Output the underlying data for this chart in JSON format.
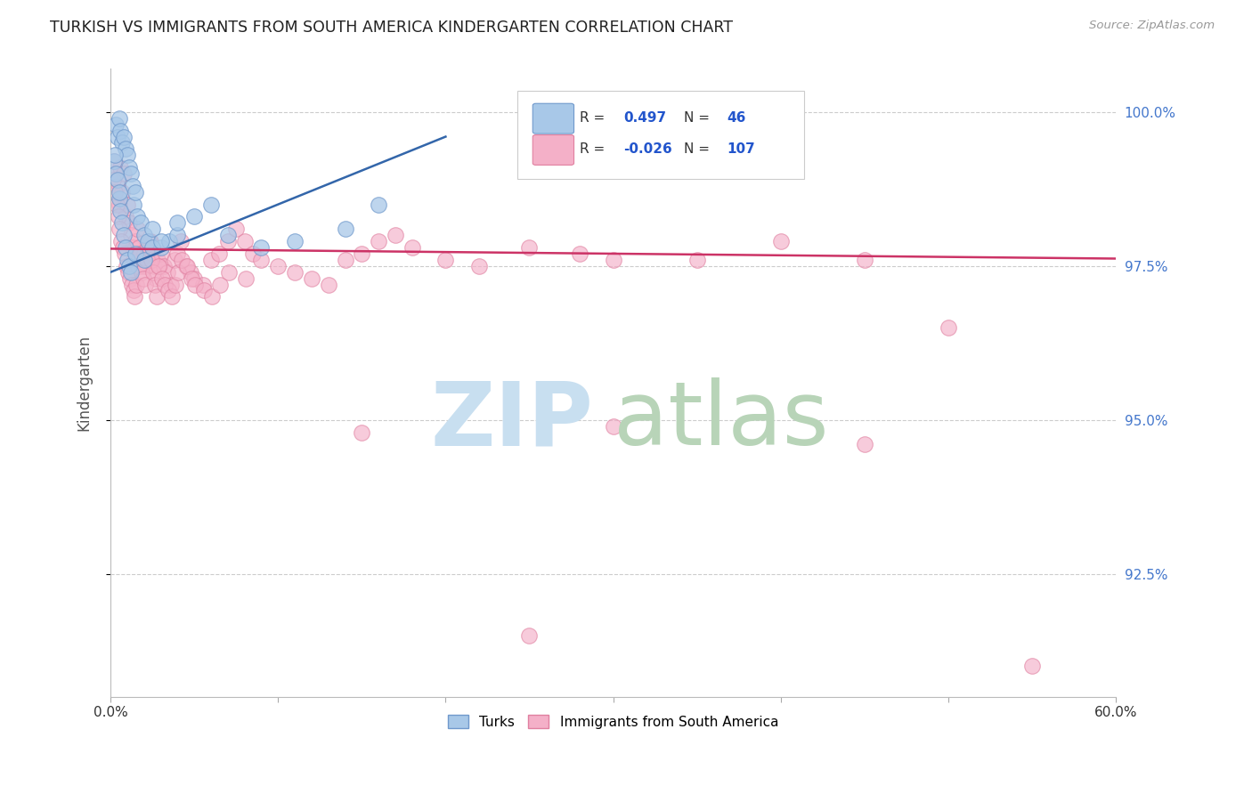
{
  "title": "TURKISH VS IMMIGRANTS FROM SOUTH AMERICA KINDERGARTEN CORRELATION CHART",
  "source": "Source: ZipAtlas.com",
  "ylabel": "Kindergarten",
  "blue_color": "#a8c8e8",
  "pink_color": "#f4b0c8",
  "blue_edge": "#7099cc",
  "pink_edge": "#e080a0",
  "blue_line_color": "#3366aa",
  "pink_line_color": "#cc3366",
  "watermark_zip_color": "#c8dff0",
  "watermark_atlas_color": "#b8d4b8",
  "xmin": 0.0,
  "xmax": 60.0,
  "ymin": 90.5,
  "ymax": 100.7,
  "yticks": [
    92.5,
    95.0,
    97.5,
    100.0
  ],
  "ytick_labels": [
    "92.5%",
    "95.0%",
    "97.5%",
    "100.0%"
  ],
  "xtick_positions": [
    0,
    10,
    20,
    30,
    40,
    50,
    60
  ],
  "xtick_labels": [
    "0.0%",
    "",
    "",
    "",
    "",
    "",
    "60.0%"
  ],
  "legend_R_blue": "0.497",
  "legend_N_blue": "46",
  "legend_R_pink": "-0.026",
  "legend_N_pink": "107",
  "blue_scatter_x": [
    0.3,
    0.4,
    0.5,
    0.6,
    0.7,
    0.8,
    0.9,
    1.0,
    1.1,
    1.2,
    1.3,
    1.4,
    1.5,
    1.6,
    1.8,
    2.0,
    2.2,
    2.5,
    3.0,
    3.5,
    4.0,
    0.2,
    0.3,
    0.4,
    0.5,
    0.6,
    0.7,
    0.8,
    0.9,
    1.0,
    1.1,
    1.2,
    1.5,
    2.0,
    2.5,
    3.0,
    4.0,
    5.0,
    6.0,
    7.0,
    9.0,
    11.0,
    14.0,
    16.0,
    0.25,
    0.55
  ],
  "blue_scatter_y": [
    99.8,
    99.6,
    99.9,
    99.7,
    99.5,
    99.6,
    99.4,
    99.3,
    99.1,
    99.0,
    98.8,
    98.5,
    98.7,
    98.3,
    98.2,
    98.0,
    97.9,
    98.1,
    97.8,
    97.9,
    98.0,
    99.2,
    99.0,
    98.9,
    98.6,
    98.4,
    98.2,
    98.0,
    97.8,
    97.6,
    97.5,
    97.4,
    97.7,
    97.6,
    97.8,
    97.9,
    98.2,
    98.3,
    98.5,
    98.0,
    97.8,
    97.9,
    98.1,
    98.5,
    99.3,
    98.7
  ],
  "pink_scatter_x": [
    0.2,
    0.3,
    0.4,
    0.5,
    0.6,
    0.7,
    0.8,
    0.9,
    1.0,
    1.1,
    1.2,
    1.3,
    1.4,
    1.5,
    1.6,
    1.7,
    1.8,
    1.9,
    2.0,
    2.1,
    2.2,
    2.3,
    2.4,
    2.5,
    2.6,
    2.7,
    2.8,
    2.9,
    3.0,
    3.2,
    3.4,
    3.6,
    3.8,
    4.0,
    4.2,
    4.5,
    4.8,
    5.0,
    5.5,
    6.0,
    6.5,
    7.0,
    7.5,
    8.0,
    8.5,
    9.0,
    10.0,
    11.0,
    12.0,
    13.0,
    14.0,
    15.0,
    16.0,
    17.0,
    18.0,
    20.0,
    22.0,
    25.0,
    28.0,
    30.0,
    35.0,
    40.0,
    45.0,
    50.0,
    0.15,
    0.25,
    0.35,
    0.45,
    0.55,
    0.65,
    0.75,
    0.85,
    0.95,
    1.05,
    1.15,
    1.25,
    1.35,
    1.45,
    1.55,
    1.65,
    1.75,
    1.85,
    1.95,
    2.05,
    2.15,
    2.25,
    2.35,
    2.45,
    2.55,
    2.65,
    2.75,
    2.85,
    3.05,
    3.25,
    3.45,
    3.65,
    3.85,
    4.05,
    4.25,
    4.55,
    4.85,
    5.05,
    5.55,
    6.05,
    6.55,
    7.05,
    8.05
  ],
  "pink_scatter_y": [
    99.2,
    99.0,
    98.8,
    98.5,
    99.1,
    98.7,
    99.0,
    98.3,
    98.5,
    98.2,
    98.0,
    97.8,
    97.6,
    97.9,
    98.1,
    97.8,
    97.7,
    97.5,
    97.7,
    97.5,
    97.8,
    97.6,
    97.9,
    97.7,
    97.5,
    97.3,
    97.6,
    97.5,
    97.7,
    97.5,
    97.4,
    97.2,
    97.6,
    97.7,
    97.9,
    97.5,
    97.4,
    97.3,
    97.2,
    97.6,
    97.7,
    97.9,
    98.1,
    97.9,
    97.7,
    97.6,
    97.5,
    97.4,
    97.3,
    97.2,
    97.6,
    97.7,
    97.9,
    98.0,
    97.8,
    97.6,
    97.5,
    97.8,
    97.7,
    97.6,
    97.6,
    97.9,
    97.6,
    96.5,
    98.9,
    98.7,
    98.5,
    98.3,
    98.1,
    97.9,
    97.8,
    97.7,
    97.5,
    97.4,
    97.3,
    97.2,
    97.1,
    97.0,
    97.2,
    97.5,
    97.7,
    97.4,
    97.3,
    97.2,
    97.6,
    97.8,
    97.9,
    97.6,
    97.4,
    97.2,
    97.0,
    97.5,
    97.3,
    97.2,
    97.1,
    97.0,
    97.2,
    97.4,
    97.6,
    97.5,
    97.3,
    97.2,
    97.1,
    97.0,
    97.2,
    97.4,
    97.3
  ],
  "pink_outliers_x": [
    15.0,
    30.0,
    25.0,
    55.0,
    45.0
  ],
  "pink_outliers_y": [
    94.8,
    94.9,
    91.5,
    91.0,
    94.6
  ]
}
